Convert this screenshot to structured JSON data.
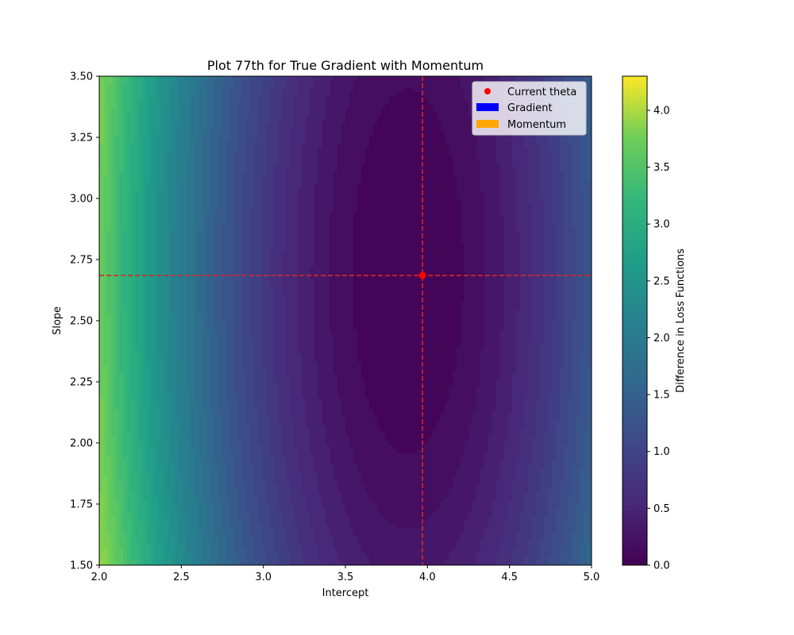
{
  "chart_data": {
    "type": "heatmap",
    "subtype": "filled-contour",
    "title": "Plot 77th for True Gradient with Momentum",
    "xlabel": "Intercept",
    "ylabel": "Slope",
    "xlim": [
      2.0,
      5.0
    ],
    "ylim": [
      1.5,
      3.5
    ],
    "x_ticks": [
      "2.0",
      "2.5",
      "3.0",
      "3.5",
      "4.0",
      "4.5",
      "5.0"
    ],
    "y_ticks": [
      "1.50",
      "1.75",
      "2.00",
      "2.25",
      "2.50",
      "2.75",
      "3.00",
      "3.25",
      "3.50"
    ],
    "colormap": "viridis",
    "colorbar": {
      "label": "Difference in Loss Functions",
      "range": [
        0.0,
        4.3
      ],
      "ticks": [
        "0.0",
        "0.5",
        "1.0",
        "1.5",
        "2.0",
        "2.5",
        "3.0",
        "3.5",
        "4.0"
      ]
    },
    "surface": {
      "minimum": {
        "intercept": 3.88,
        "slope": 2.7,
        "value": 0.0
      },
      "intercept_scale": 0.94,
      "slope_scale": 4.5
    },
    "current_theta": {
      "intercept": 3.97,
      "slope": 2.685
    },
    "reference_lines": {
      "vertical_x": 3.97,
      "horizontal_y": 2.685,
      "color": "#d62728",
      "style": "dashed"
    },
    "legend": {
      "position": "upper right",
      "entries": [
        {
          "label": "Current theta",
          "marker": "dot",
          "color": "#ff0000"
        },
        {
          "label": "Gradient",
          "marker": "patch",
          "color": "#0000ff"
        },
        {
          "label": "Momentum",
          "marker": "patch",
          "color": "#ffa500"
        }
      ]
    }
  }
}
